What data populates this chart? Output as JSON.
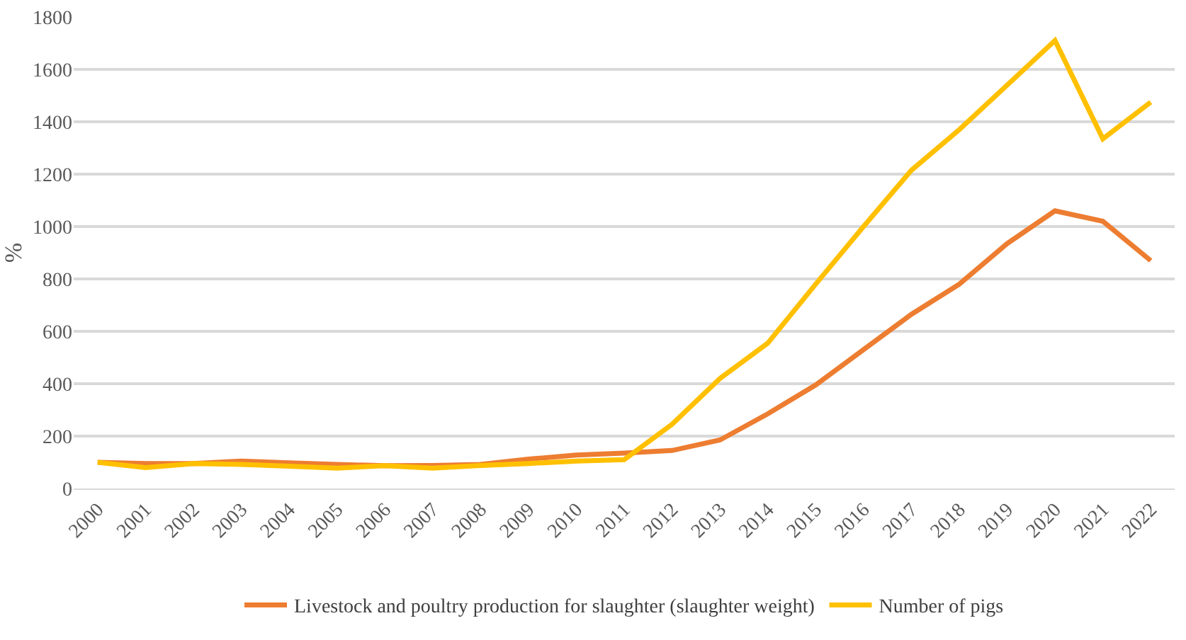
{
  "chart_data": {
    "type": "line",
    "ylabel": "%",
    "categories": [
      "2000",
      "2001",
      "2002",
      "2003",
      "2004",
      "2005",
      "2006",
      "2007",
      "2008",
      "2009",
      "2010",
      "2011",
      "2012",
      "2013",
      "2014",
      "2015",
      "2016",
      "2017",
      "2018",
      "2019",
      "2020",
      "2021",
      "2022"
    ],
    "series": [
      {
        "name": "Livestock and poultry production for slaughter (slaughter weight)",
        "color": "#ed7d31",
        "values": [
          100,
          95,
          95,
          105,
          98,
          92,
          87,
          88,
          92,
          112,
          128,
          135,
          145,
          185,
          285,
          395,
          530,
          665,
          780,
          935,
          1060,
          1020,
          870
        ]
      },
      {
        "name": "Number of pigs",
        "color": "#ffc000",
        "values": [
          100,
          80,
          95,
          92,
          85,
          78,
          87,
          78,
          88,
          95,
          105,
          110,
          245,
          420,
          555,
          780,
          1000,
          1215,
          1370,
          1540,
          1710,
          1335,
          1475
        ]
      }
    ],
    "ylim": [
      0,
      1800
    ],
    "yticks": [
      0,
      200,
      400,
      600,
      800,
      1000,
      1200,
      1400,
      1600,
      1800
    ],
    "grid": "y",
    "legend": "bottom",
    "marker": "none",
    "line_style": "solid"
  }
}
